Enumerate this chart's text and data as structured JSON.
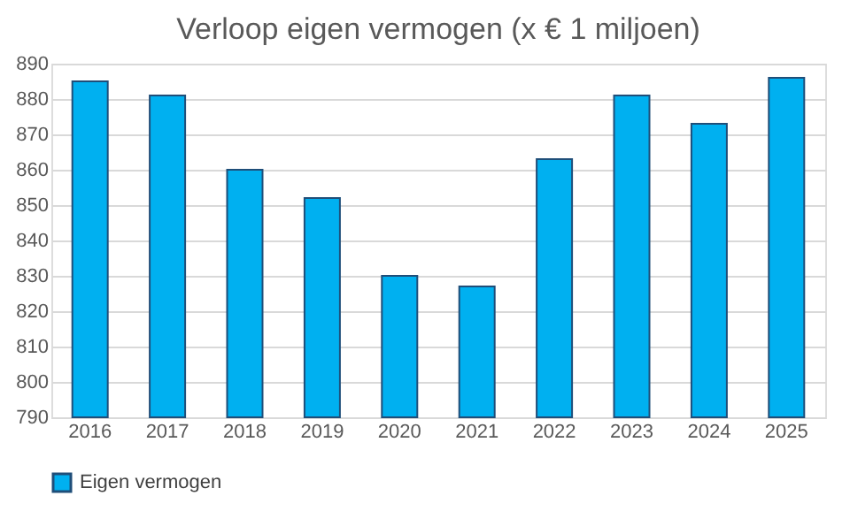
{
  "chart_data": {
    "type": "bar",
    "title": "Verloop eigen vermogen (x € 1 miljoen)",
    "categories": [
      "2016",
      "2017",
      "2018",
      "2019",
      "2020",
      "2021",
      "2022",
      "2023",
      "2024",
      "2025"
    ],
    "series": [
      {
        "name": "Eigen vermogen",
        "color": "#00b0f0",
        "values": [
          885,
          881,
          860,
          852,
          830,
          827,
          863,
          881,
          873,
          886
        ]
      }
    ],
    "ylim": [
      790,
      890
    ],
    "yticks": [
      790,
      800,
      810,
      820,
      830,
      840,
      850,
      860,
      870,
      880,
      890
    ],
    "grid": "y",
    "legend": "bottom"
  }
}
